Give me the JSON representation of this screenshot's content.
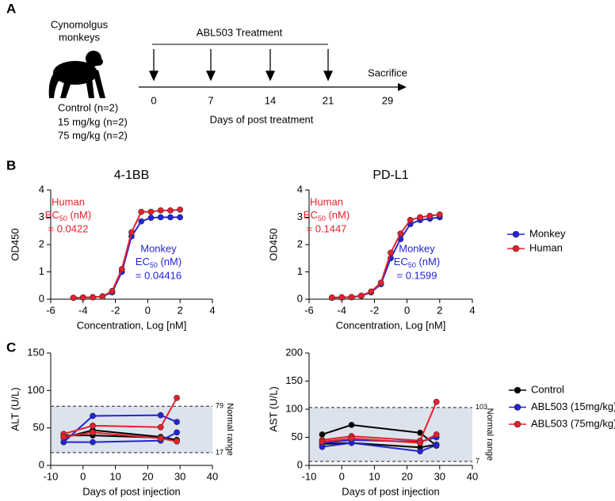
{
  "panel_labels": [
    "A",
    "B",
    "C"
  ],
  "diagram": {
    "species": [
      "Cynomolgus",
      "monkeys"
    ],
    "groups": [
      "Control (n=2)",
      "15 mg/kg (n=2)",
      "75 mg/kg (n=2)"
    ],
    "treatment": "ABL503 Treatment",
    "days": [
      0,
      7,
      14,
      21,
      29
    ],
    "end_label": "Sacrifice",
    "axis_label": "Days of post treatment"
  },
  "chart_data": [
    {
      "type": "line",
      "title": "4-1BB",
      "x_label": "Concentration, Log [nM]",
      "y_label": "OD450",
      "x": [
        -4.6,
        -4.0,
        -3.4,
        -2.8,
        -2.2,
        -1.6,
        -1.0,
        -0.4,
        0.2,
        0.8,
        1.4,
        2.0
      ],
      "series": [
        {
          "color": "#2323d9",
          "values": [
            0.05,
            0.06,
            0.07,
            0.1,
            0.25,
            1.0,
            2.3,
            2.85,
            2.98,
            3.0,
            3.0,
            3.0
          ]
        },
        {
          "color": "#e8202a",
          "values": [
            0.05,
            0.06,
            0.07,
            0.1,
            0.3,
            1.1,
            2.45,
            3.2,
            3.2,
            3.25,
            3.25,
            3.28
          ]
        }
      ],
      "annotations": [
        {
          "color": "#e8202a",
          "name": "Human",
          "ec": "EC",
          "sub": "50",
          "unit": " (nM)",
          "value": "= 0.0422"
        },
        {
          "color": "#2323d9",
          "name": "Monkey",
          "ec": "EC",
          "sub": "50",
          "unit": " (nM)",
          "value": "= 0.04416"
        }
      ],
      "xlim": [
        -6,
        4
      ],
      "xticks": [
        -6,
        -4,
        -2,
        0,
        2,
        4
      ],
      "ylim": [
        0,
        4
      ],
      "yticks": [
        0,
        1,
        2,
        3,
        4
      ]
    },
    {
      "type": "line",
      "title": "PD-L1",
      "x_label": "Concentration, Log [nM]",
      "y_label": "OD450",
      "x": [
        -4.6,
        -4.0,
        -3.4,
        -2.8,
        -2.2,
        -1.6,
        -1.0,
        -0.4,
        0.2,
        0.8,
        1.4,
        2.0
      ],
      "series": [
        {
          "name": "Monkey",
          "color": "#2323d9",
          "values": [
            0.05,
            0.06,
            0.07,
            0.12,
            0.25,
            0.55,
            1.5,
            2.2,
            2.75,
            2.9,
            2.95,
            3.0
          ]
        },
        {
          "name": "Human",
          "color": "#e8202a",
          "values": [
            0.06,
            0.07,
            0.08,
            0.13,
            0.28,
            0.6,
            1.7,
            2.4,
            2.9,
            3.0,
            3.05,
            3.1
          ]
        }
      ],
      "annotations": [
        {
          "color": "#e8202a",
          "name": "Human",
          "ec": "EC",
          "sub": "50",
          "unit": " (nM)",
          "value": "= 0.1447"
        },
        {
          "color": "#2323d9",
          "name": "Monkey",
          "ec": "EC",
          "sub": "50",
          "unit": " (nM)",
          "value": "= 0.1599"
        }
      ],
      "xlim": [
        -6,
        4
      ],
      "xticks": [
        -6,
        -4,
        -2,
        0,
        2,
        4
      ],
      "ylim": [
        0,
        4
      ],
      "yticks": [
        0,
        1,
        2,
        3,
        4
      ]
    },
    {
      "type": "line",
      "x_label": "Days of post injection",
      "y_label": "ALT (U/L)",
      "x": [
        -6,
        3,
        24,
        29
      ],
      "series": [
        {
          "color": "#000000",
          "values": [
            [
              37,
              47,
              38,
              34
            ],
            [
              40,
              40,
              37,
              33
            ]
          ]
        },
        {
          "color": "#2323d9",
          "values": [
            [
              31,
              66,
              67,
              58
            ],
            [
              31,
              31,
              33,
              44
            ]
          ]
        },
        {
          "color": "#e8202a",
          "values": [
            [
              42,
              53,
              51,
              90
            ],
            [
              38,
              44,
              36,
              32
            ]
          ]
        }
      ],
      "normal_range": {
        "low": 17,
        "high": 79,
        "label": "Normal range"
      },
      "xlim": [
        -10,
        40
      ],
      "xticks": [
        -10,
        0,
        10,
        20,
        30,
        40
      ],
      "ylim": [
        0,
        150
      ],
      "yticks": [
        0,
        50,
        100,
        150
      ]
    },
    {
      "type": "line",
      "x_label": "Days of post injection",
      "y_label": "AST (U/L)",
      "x": [
        -6,
        3,
        24,
        29
      ],
      "series": [
        {
          "name": "Control",
          "color": "#000000",
          "values": [
            [
              55,
              72,
              58,
              35
            ],
            [
              38,
              40,
              32,
              37
            ]
          ]
        },
        {
          "name": "ABL503 (15mg/kg)",
          "color": "#2323d9",
          "values": [
            [
              40,
              45,
              42,
              50
            ],
            [
              33,
              40,
              25,
              36
            ]
          ]
        },
        {
          "name": "ABL503 (75mg/kg)",
          "color": "#e8202a",
          "values": [
            [
              45,
              52,
              44,
              113
            ],
            [
              42,
              48,
              40,
              55
            ]
          ]
        }
      ],
      "normal_range": {
        "low": 7,
        "high": 103,
        "label": "Normal range"
      },
      "xlim": [
        -10,
        40
      ],
      "xticks": [
        -10,
        0,
        10,
        20,
        30,
        40
      ],
      "ylim": [
        0,
        200
      ],
      "yticks": [
        0,
        50,
        100,
        150,
        200
      ]
    }
  ]
}
